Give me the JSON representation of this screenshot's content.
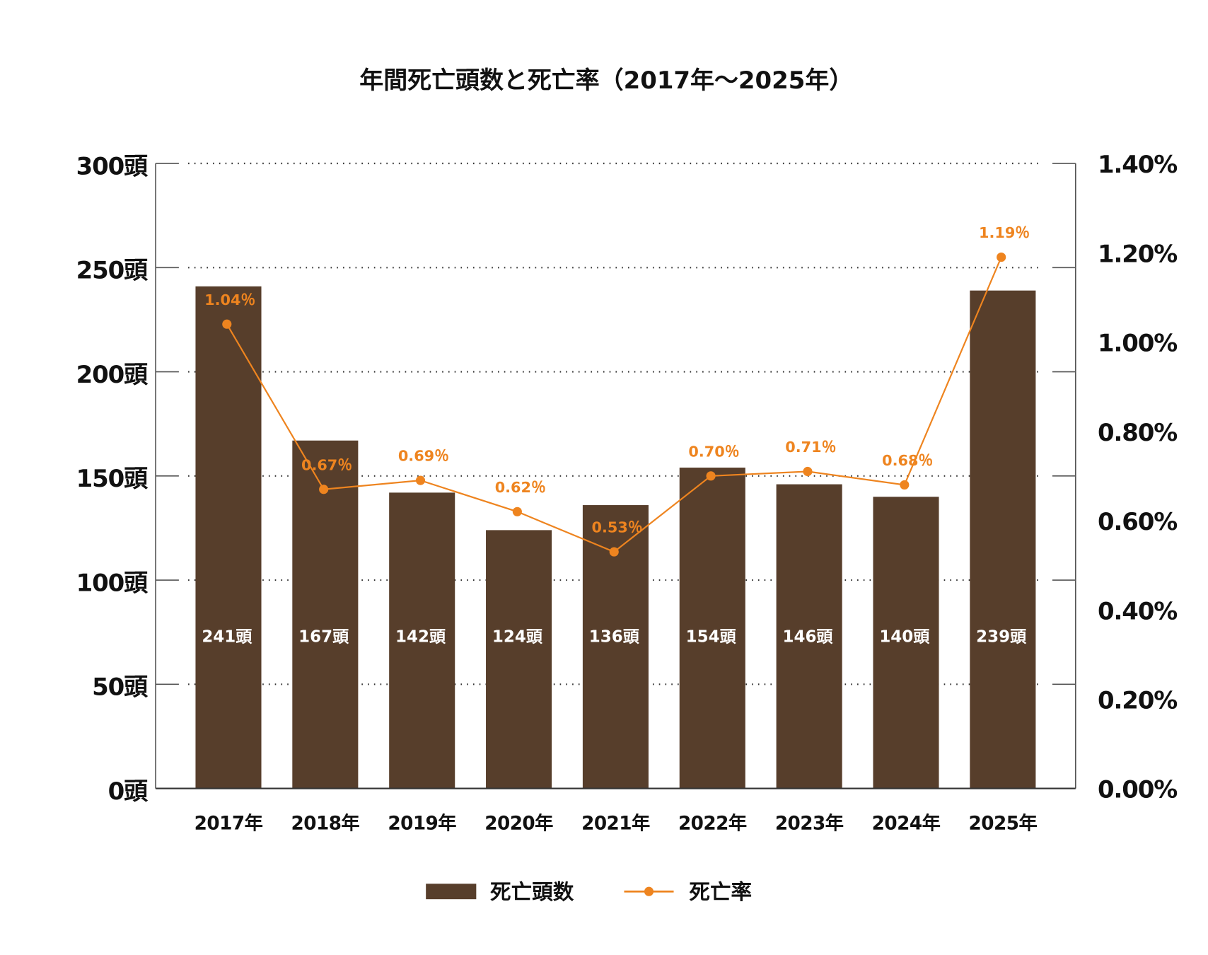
{
  "chart_data": {
    "type": "bar+line",
    "title": "年間死亡頭数と死亡率（2017年〜2025年）",
    "categories": [
      "2017年",
      "2018年",
      "2019年",
      "2020年",
      "2021年",
      "2022年",
      "2023年",
      "2024年",
      "2025年"
    ],
    "series": [
      {
        "name": "死亡頭数",
        "type": "bar",
        "axis": "left",
        "values": [
          241,
          167,
          142,
          124,
          136,
          154,
          146,
          140,
          239
        ],
        "labels": [
          "241頭",
          "167頭",
          "142頭",
          "124頭",
          "136頭",
          "154頭",
          "146頭",
          "140頭",
          "239頭"
        ]
      },
      {
        "name": "死亡率",
        "type": "line",
        "axis": "right",
        "values": [
          1.04,
          0.67,
          0.69,
          0.62,
          0.53,
          0.7,
          0.71,
          0.68,
          1.19
        ],
        "labels": [
          "1.04％",
          "0.67％",
          "0.69％",
          "0.62％",
          "0.53％",
          "0.70％",
          "0.71％",
          "0.68％",
          "1.19％"
        ]
      }
    ],
    "left_axis": {
      "ylim": [
        0,
        300
      ],
      "ticks": [
        "0頭",
        "50頭",
        "100頭",
        "150頭",
        "200頭",
        "250頭",
        "300頭"
      ]
    },
    "right_axis": {
      "ylim": [
        0,
        1.4
      ],
      "ticks": [
        "0.00%",
        "0.20%",
        "0.40%",
        "0.60%",
        "0.80%",
        "1.00%",
        "1.20%",
        "1.40%"
      ]
    },
    "grid": "horizontal dotted",
    "legend_placement": "bottom-center",
    "colors": {
      "bar": "#573e2b",
      "line": "#ee841f"
    }
  }
}
